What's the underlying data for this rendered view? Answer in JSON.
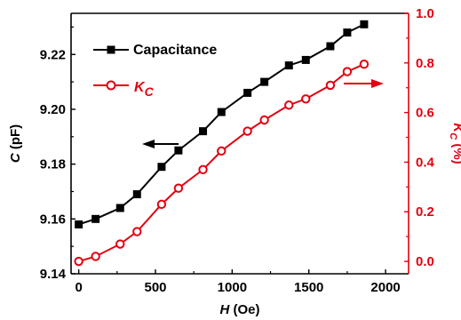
{
  "chart_data": {
    "type": "line",
    "x": [
      0,
      110,
      270,
      380,
      540,
      650,
      810,
      930,
      1100,
      1210,
      1370,
      1480,
      1640,
      1750,
      1860
    ],
    "x_axis": {
      "label_italic": "H",
      "label_rest": " (Oe)",
      "lim": [
        -50,
        2150
      ],
      "ticks": [
        0,
        500,
        1000,
        1500,
        2000
      ],
      "tick_labels": [
        "0",
        "500",
        "1000",
        "1500",
        "2000"
      ]
    },
    "y_left": {
      "label_italic": "C",
      "label_rest": " (pF)",
      "lim": [
        9.14,
        9.235
      ],
      "ticks": [
        9.14,
        9.16,
        9.18,
        9.2,
        9.22
      ],
      "tick_labels": [
        "9.14",
        "9.16",
        "9.18",
        "9.20",
        "9.22"
      ],
      "color": "#000000"
    },
    "y_right": {
      "label_main": "K",
      "label_sub": "C",
      "label_rest": " (%)",
      "lim": [
        -0.05,
        1.0
      ],
      "ticks": [
        0.0,
        0.2,
        0.4,
        0.6,
        0.8,
        1.0
      ],
      "tick_labels": [
        "0.0",
        "0.2",
        "0.4",
        "0.6",
        "0.8",
        "1.0"
      ],
      "color": "#e3000f"
    },
    "series": [
      {
        "name": "Capacitance",
        "axis": "left",
        "marker": "square",
        "color": "#000000",
        "values": [
          9.158,
          9.16,
          9.164,
          9.169,
          9.179,
          9.185,
          9.192,
          9.199,
          9.206,
          9.21,
          9.216,
          9.218,
          9.223,
          9.228,
          9.231
        ]
      },
      {
        "name_main": "K",
        "name_sub": "C",
        "axis": "right",
        "marker": "open-circle",
        "color": "#e3000f",
        "values": [
          0.0,
          0.02,
          0.07,
          0.12,
          0.23,
          0.295,
          0.37,
          0.445,
          0.525,
          0.57,
          0.63,
          0.655,
          0.71,
          0.765,
          0.795
        ]
      }
    ],
    "annotations": [
      {
        "type": "arrow",
        "direction": "left",
        "points_to_axis": "left",
        "color": "#000000"
      },
      {
        "type": "arrow",
        "direction": "right",
        "points_to_axis": "right",
        "color": "#e3000f"
      }
    ],
    "grid": false,
    "legend_position": "top-left"
  }
}
